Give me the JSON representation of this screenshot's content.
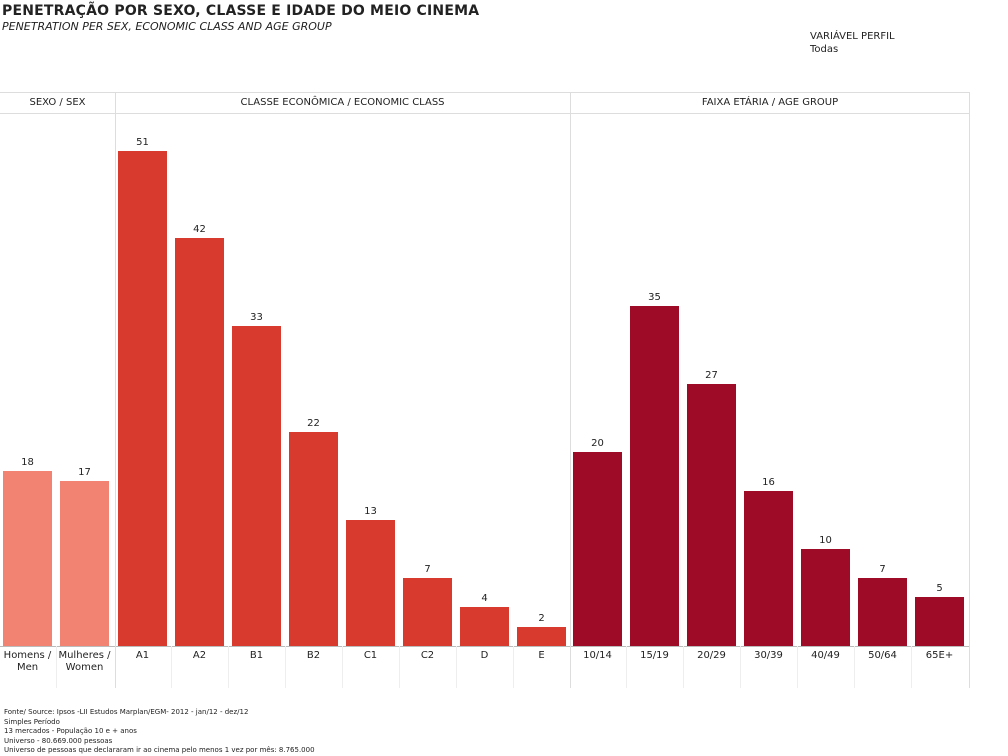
{
  "header": {
    "title": "PENETRAÇÃO POR SEXO, CLASSE E IDADE DO MEIO CINEMA",
    "subtitle": "PENETRATION PER SEX, ECONOMIC CLASS AND AGE GROUP"
  },
  "filter": {
    "label": "VARIÁVEL PERFIL",
    "value": "Todas"
  },
  "chart_data": [
    {
      "type": "bar",
      "title": "SEXO / SEX",
      "categories": [
        "Homens / Men",
        "Mulheres / Women"
      ],
      "values": [
        18,
        17
      ],
      "color": "#f28373"
    },
    {
      "type": "bar",
      "title": "CLASSE ECONÔMICA / ECONOMIC CLASS",
      "categories": [
        "A1",
        "A2",
        "B1",
        "B2",
        "C1",
        "C2",
        "D",
        "E"
      ],
      "values": [
        51,
        42,
        33,
        22,
        13,
        7,
        4,
        2
      ],
      "color": "#d93a2e"
    },
    {
      "type": "bar",
      "title": "FAIXA ETÁRIA / AGE GROUP",
      "categories": [
        "10/14",
        "15/19",
        "20/29",
        "30/39",
        "40/49",
        "50/64",
        "65E+"
      ],
      "values": [
        20,
        35,
        27,
        16,
        10,
        7,
        5
      ],
      "color": "#9e0b26"
    }
  ],
  "footnotes": [
    "Fonte/ Source: Ipsos -LII Estudos Marplan/EGM- 2012 - jan/12 - dez/12",
    "Simples Período",
    "13 mercados - População 10 e + anos",
    "Universo - 80.669.000 pessoas",
    "Universo de pessoas que declararam ir ao cinema pelo menos 1 vez por mês: 8.765.000"
  ]
}
